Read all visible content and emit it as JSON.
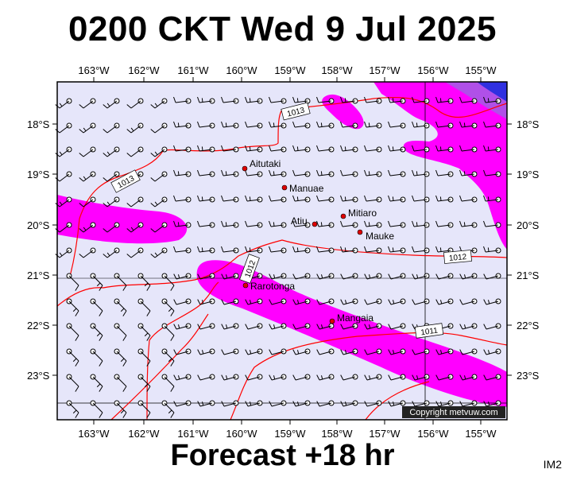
{
  "title": "0200 CKT Wed 9 Jul 2025",
  "footer": "Forecast +18 hr",
  "corner_tag": "IM2",
  "copyright": "Copyright metvuw.com",
  "longitude_labels": [
    "163°W",
    "162°W",
    "161°W",
    "160°W",
    "159°W",
    "158°W",
    "157°W",
    "156°W",
    "155°W"
  ],
  "latitude_labels": [
    "18°S",
    "19°S",
    "20°S",
    "21°S",
    "22°S",
    "23°S"
  ],
  "places": [
    "Aitutaki",
    "Manuae",
    "Atiu",
    "Mitiaro",
    "Mauke",
    "Rarotonga",
    "Mangaia"
  ],
  "isobars": [
    "1013",
    "1013",
    "1012",
    "1012",
    "1011"
  ],
  "colors": {
    "background": "#e6e6fa",
    "wind_band": "#ff00ff",
    "wind_strong": "#a040e0",
    "wind_max": "#2020e0",
    "isobar": "#ff0000",
    "island": "#e00000"
  }
}
